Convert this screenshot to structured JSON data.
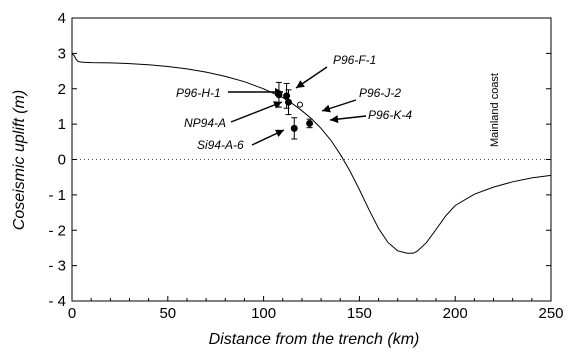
{
  "chart_data": {
    "type": "line",
    "xlabel": "Distance from the trench (km)",
    "ylabel": "Coseismic uplift (m)",
    "xlim": [
      0,
      250
    ],
    "ylim": [
      -4,
      4
    ],
    "xticks": [
      0,
      50,
      100,
      150,
      200,
      250
    ],
    "yticks": [
      4,
      3,
      2,
      1,
      0,
      -1,
      -2,
      -3,
      -4
    ],
    "ytick_labels": [
      "4",
      "3",
      "2",
      "1",
      "0",
      "- 1",
      "- 2",
      "- 3",
      "- 4"
    ],
    "grid": false,
    "zero_line": "dotted",
    "model_curve": {
      "x": [
        0,
        1,
        2,
        3,
        4,
        6,
        10,
        20,
        30,
        40,
        50,
        60,
        70,
        80,
        90,
        100,
        110,
        115,
        120,
        125,
        130,
        135,
        140,
        145,
        150,
        155,
        160,
        165,
        170,
        175,
        178,
        180,
        185,
        190,
        195,
        200,
        210,
        220,
        230,
        240,
        250
      ],
      "y": [
        2.98,
        2.95,
        2.85,
        2.78,
        2.76,
        2.75,
        2.74,
        2.73,
        2.71,
        2.68,
        2.63,
        2.56,
        2.47,
        2.35,
        2.2,
        2.0,
        1.75,
        1.58,
        1.38,
        1.15,
        0.88,
        0.55,
        0.15,
        -0.32,
        -0.85,
        -1.42,
        -1.95,
        -2.35,
        -2.58,
        -2.65,
        -2.65,
        -2.6,
        -2.35,
        -1.98,
        -1.6,
        -1.3,
        -0.98,
        -0.78,
        -0.63,
        -0.52,
        -0.45
      ]
    },
    "observations": [
      {
        "label": "P96-H-1",
        "x": 108,
        "y": 1.83,
        "err": 0.35
      },
      {
        "label": "P96-F-1",
        "x": 112,
        "y": 1.8,
        "err": 0.35
      },
      {
        "label": "NP94-A",
        "x": 113,
        "y": 1.62,
        "err": 0.35
      },
      {
        "label": "P96-J-2",
        "x": 119,
        "y": 1.55,
        "err": 0
      },
      {
        "label": "P96-K-4",
        "x": 124,
        "y": 1.02,
        "err": 0.12
      },
      {
        "label": "SI94-A-6",
        "x": 116,
        "y": 0.88,
        "err": 0.3
      }
    ],
    "annotations": [
      {
        "text": "Mainland coast",
        "x": 218
      }
    ]
  },
  "labels": {
    "obs": [
      "P96-H-1",
      "P96-F-1",
      "NP94-A",
      "P96-J-2",
      "P96-K-4",
      "Si94-A-6"
    ],
    "coast": "Mainland coast"
  }
}
